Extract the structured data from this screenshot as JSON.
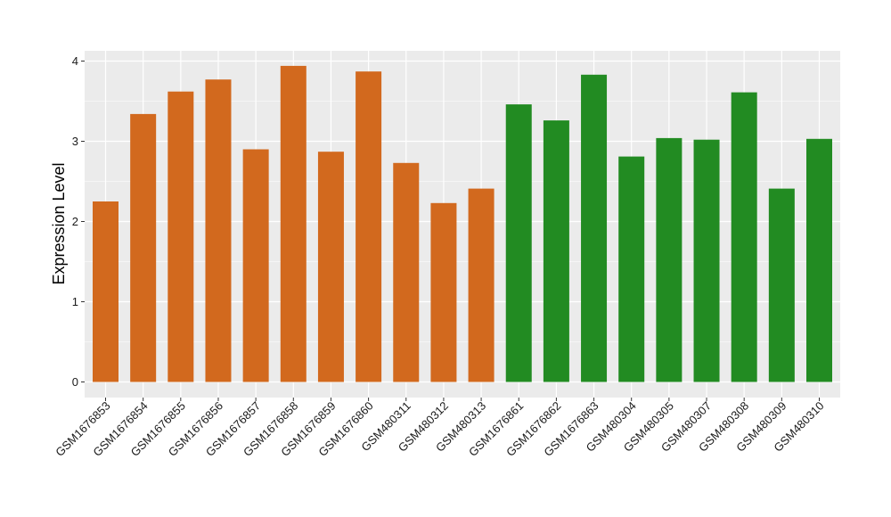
{
  "chart_data": {
    "type": "bar",
    "title": "",
    "xlabel": "",
    "ylabel": "Expression Level",
    "ylim": [
      0,
      4
    ],
    "ytick_values": [
      0,
      1,
      2,
      3,
      4
    ],
    "ytick_labels": [
      "0",
      "1",
      "2",
      "3",
      "4"
    ],
    "categories": [
      "GSM1676853",
      "GSM1676854",
      "GSM1676855",
      "GSM1676856",
      "GSM1676857",
      "GSM1676858",
      "GSM1676859",
      "GSM1676860",
      "GSM480311",
      "GSM480312",
      "GSM480313",
      "GSM1676861",
      "GSM1676862",
      "GSM1676863",
      "GSM480304",
      "GSM480305",
      "GSM480307",
      "GSM480308",
      "GSM480309",
      "GSM480310"
    ],
    "values": [
      2.25,
      3.34,
      3.62,
      3.77,
      2.9,
      3.94,
      2.87,
      3.87,
      2.73,
      2.23,
      2.41,
      3.46,
      3.26,
      3.83,
      2.81,
      3.04,
      3.02,
      3.61,
      2.41,
      3.03
    ],
    "colors": [
      "#D2691E",
      "#D2691E",
      "#D2691E",
      "#D2691E",
      "#D2691E",
      "#D2691E",
      "#D2691E",
      "#D2691E",
      "#D2691E",
      "#D2691E",
      "#D2691E",
      "#228B22",
      "#228B22",
      "#228B22",
      "#228B22",
      "#228B22",
      "#228B22",
      "#228B22",
      "#228B22",
      "#228B22"
    ],
    "grid": true,
    "panel_background": "#EBEBEB",
    "grid_color": "#FFFFFF",
    "legend": "none"
  }
}
